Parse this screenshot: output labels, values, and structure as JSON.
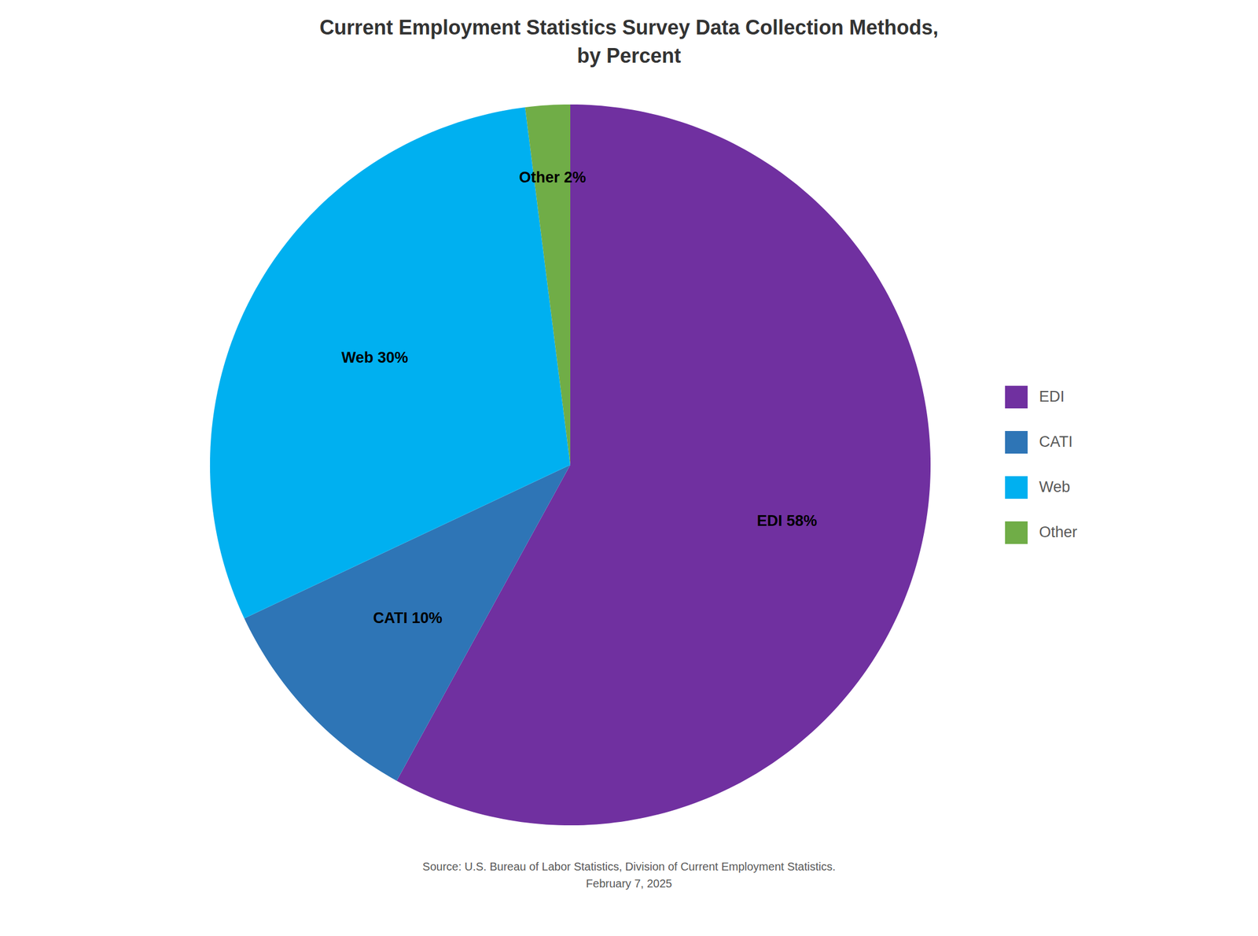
{
  "chart_data": {
    "type": "pie",
    "title": "Current Employment Statistics Survey Data Collection Methods,\nby Percent",
    "caption": "Source: U.S. Bureau of Labor Statistics, Division of Current Employment Statistics.\nFebruary 7, 2025",
    "categories": [
      "EDI",
      "CATI",
      "Web",
      "Other"
    ],
    "values": [
      58,
      10,
      30,
      2
    ],
    "colors": [
      "#7030A0",
      "#2E75B6",
      "#00B0F0",
      "#70AD47"
    ],
    "data_labels": true,
    "value_labels": [
      "EDI 58%",
      "CATI 10%",
      "Web 30%",
      "Other 2%"
    ],
    "legend": "right"
  }
}
